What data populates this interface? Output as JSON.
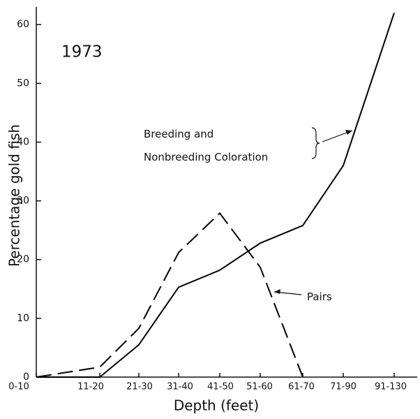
{
  "chart_data": {
    "type": "line",
    "title": "1973",
    "x_label": "Depth (feet)",
    "y_label": "Percentage gold fish",
    "categories": [
      "0-10",
      "11-20",
      "21-30",
      "31-40",
      "41-50",
      "51-60",
      "61-70",
      "71-90",
      "91-130"
    ],
    "series": [
      {
        "name": "Breeding and Nonbreeding Coloration",
        "color": "#000000",
        "dash": "solid",
        "values": [
          0,
          0,
          5.5,
          15.3,
          18.2,
          22.8,
          25.8,
          36,
          62
        ]
      },
      {
        "name": "Pairs",
        "color": "#000000",
        "dash": "dashed",
        "values": [
          0,
          1.7,
          8.3,
          21.2,
          27.9,
          18.7,
          0,
          null,
          null
        ]
      }
    ],
    "ylim": [
      0,
      63
    ],
    "yticks": [
      0,
      10,
      20,
      30,
      40,
      50,
      60
    ],
    "grid": false
  }
}
